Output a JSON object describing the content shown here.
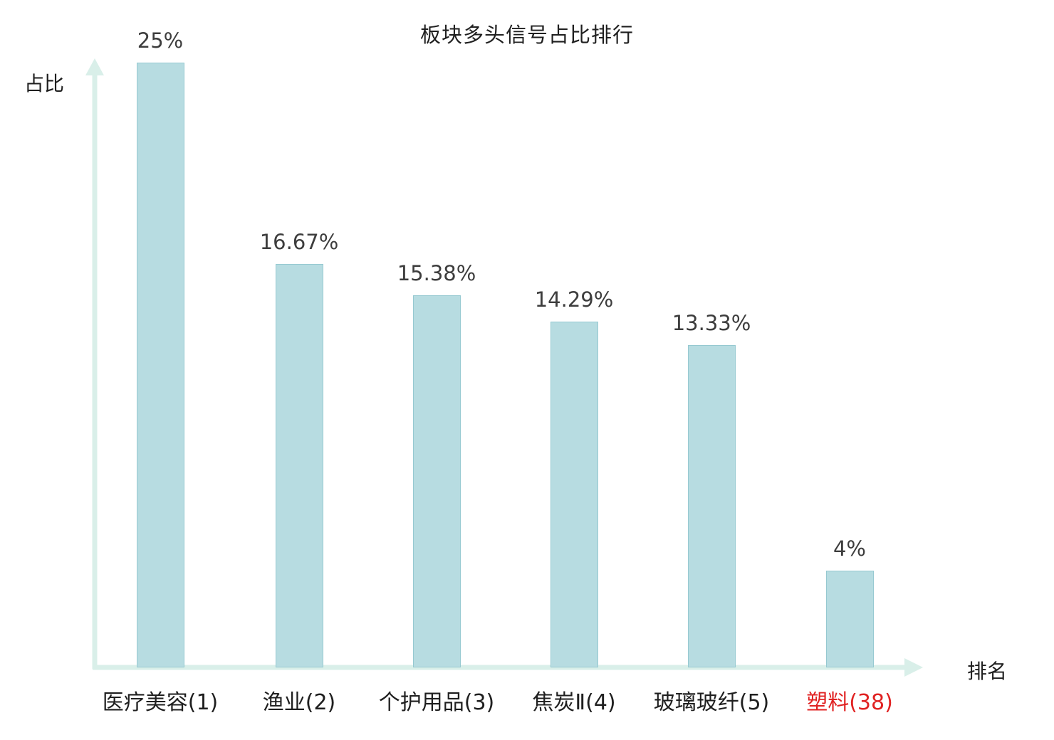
{
  "chart_data": {
    "type": "bar",
    "title": "板块多头信号占比排行",
    "xlabel": "排名",
    "ylabel": "占比",
    "categories": [
      "医疗美容(1)",
      "渔业(2)",
      "个护用品(3)",
      "焦炭Ⅱ(4)",
      "玻璃玻纤(5)",
      "塑料(38)"
    ],
    "values": [
      25,
      16.67,
      15.38,
      14.29,
      13.33,
      4
    ],
    "value_labels": [
      "25%",
      "16.67%",
      "15.38%",
      "14.29%",
      "13.33%",
      "4%"
    ],
    "highlight_category_index": 5,
    "ylim": [
      0,
      25
    ],
    "grid": false,
    "legend": "none"
  },
  "colors": {
    "bar_fill": "#b7dce1",
    "bar_border": "#96c9d1",
    "axis": "#d9efe9",
    "value_text": "#3d3d3d",
    "category_text": "#1f1f1f",
    "highlight_text": "#e02222"
  }
}
